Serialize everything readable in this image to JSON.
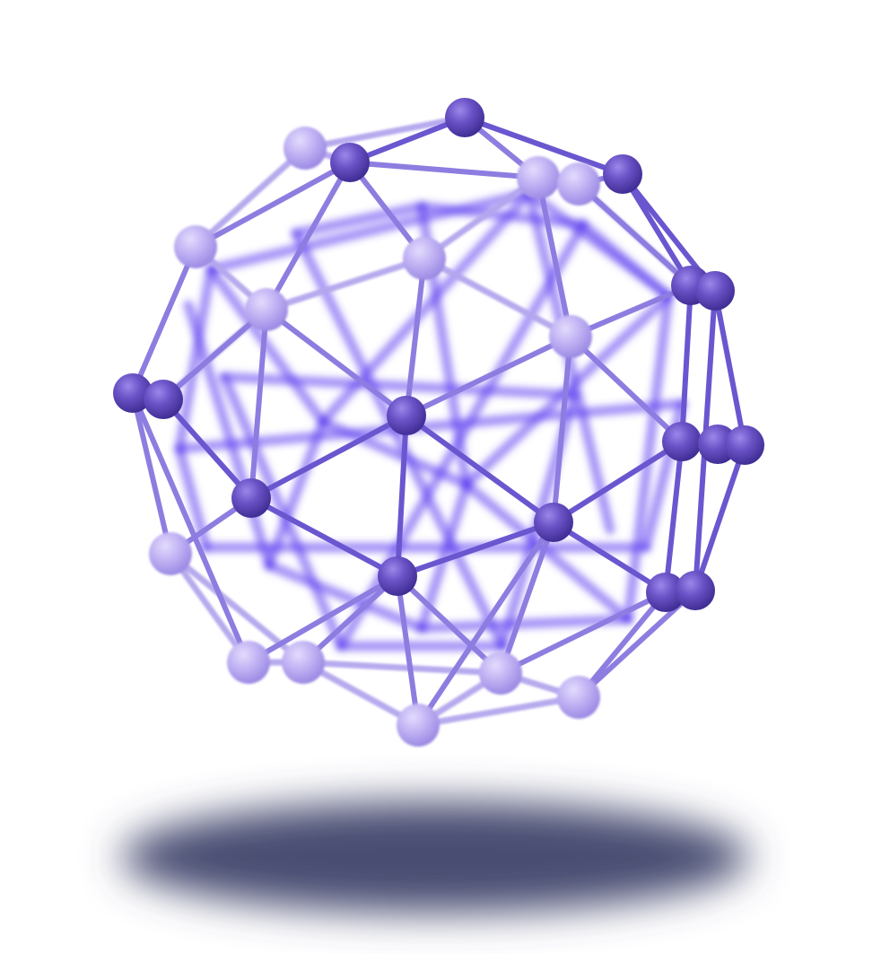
{
  "scene": {
    "subject": "molecule-sphere",
    "background_color": "#ffffff",
    "colors": {
      "node_front": "#6a52c6",
      "node_front_dark": "#3f2c93",
      "node_front_light": "#8c7ae0",
      "node_pale": "#b9aaf0",
      "node_pale_light": "#ddd4fb",
      "edge_front": "#6a56cf",
      "edge_pale": "#b4a6ee",
      "edge_back": "#5b3df0",
      "shadow": "#4a4e72"
    }
  }
}
